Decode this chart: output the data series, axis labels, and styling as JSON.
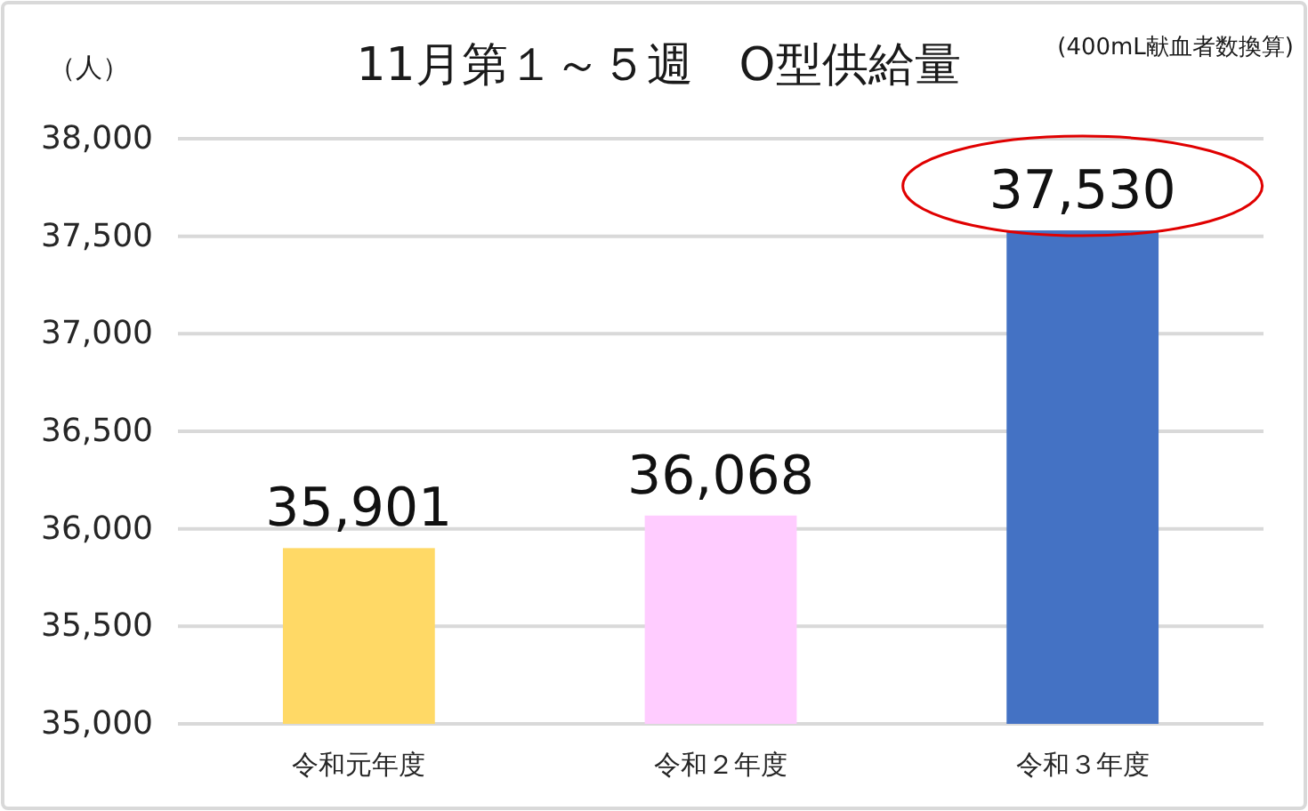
{
  "chart_data": {
    "type": "bar",
    "title": "11月第１～５週　O型供給量",
    "subtitle": "(400mL献血者数換算)",
    "ylabel": "（人）",
    "categories": [
      "令和元年度",
      "令和２年度",
      "令和３年度"
    ],
    "values": [
      35901,
      36068,
      37530
    ],
    "colors": [
      "#ffd966",
      "#ffccff",
      "#4472c4"
    ],
    "value_labels": [
      "35,901",
      "36,068",
      "37,530"
    ],
    "ylim": [
      35000,
      38000
    ],
    "yticks": [
      {
        "value": 35000,
        "label": "35,000"
      },
      {
        "value": 35500,
        "label": "35,500"
      },
      {
        "value": 36000,
        "label": "36,000"
      },
      {
        "value": 36500,
        "label": "36,500"
      },
      {
        "value": 37000,
        "label": "37,000"
      },
      {
        "value": 37500,
        "label": "37,500"
      },
      {
        "value": 38000,
        "label": "38,000"
      }
    ],
    "grid": "y"
  }
}
